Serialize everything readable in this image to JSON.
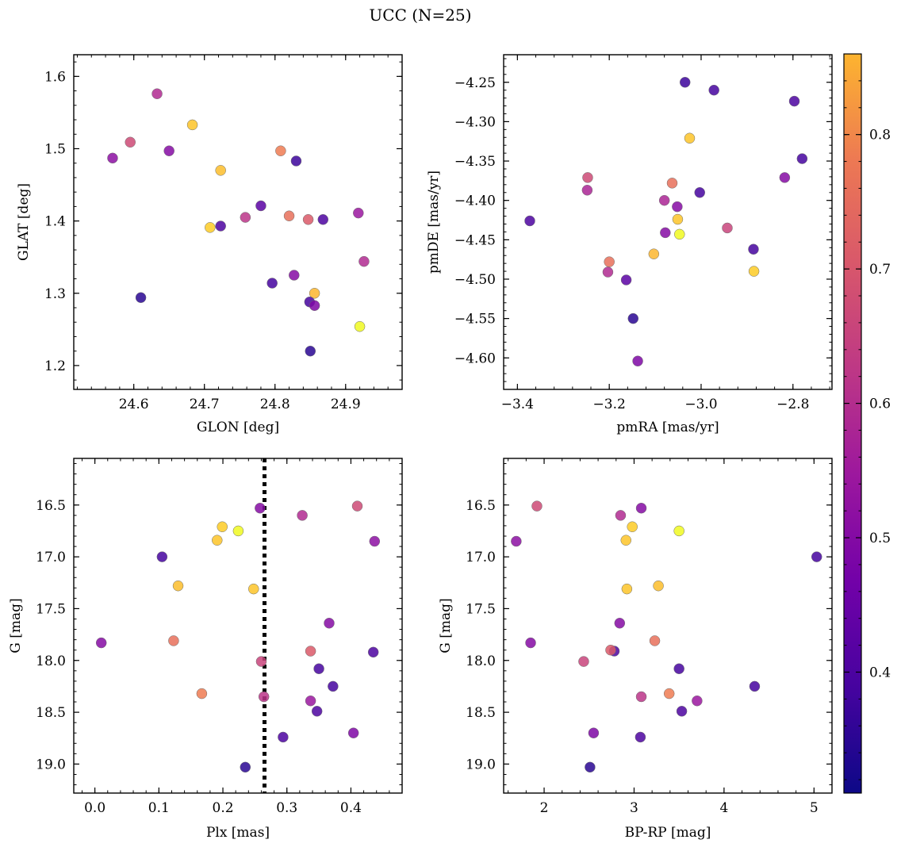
{
  "chart_data": {
    "title": "UCC (N=25)",
    "colorbar": {
      "colormap": "plasma",
      "range": [
        0.31,
        0.86
      ],
      "ticks": [
        0.4,
        0.5,
        0.6,
        0.7,
        0.8
      ],
      "tick_labels": [
        "0.4",
        "0.5",
        "0.6",
        "0.7",
        "0.8"
      ]
    },
    "panels": [
      {
        "type": "scatter",
        "xlabel": "GLON [deg]",
        "ylabel": "GLAT [deg]",
        "xlim": [
          24.515,
          24.98
        ],
        "ylim": [
          1.167,
          1.63
        ],
        "y_inverted": false,
        "xticks": [
          24.6,
          24.7,
          24.8,
          24.9
        ],
        "xtick_labels": [
          "24.6",
          "24.7",
          "24.8",
          "24.9"
        ],
        "yticks": [
          1.2,
          1.3,
          1.4,
          1.5,
          1.6
        ],
        "ytick_labels": [
          "1.2",
          "1.3",
          "1.4",
          "1.5",
          "1.6"
        ],
        "points": [
          {
            "x": 24.633,
            "y": 1.576,
            "c": 0.53
          },
          {
            "x": 24.683,
            "y": 1.533,
            "c": 0.79
          },
          {
            "x": 24.595,
            "y": 1.509,
            "c": 0.59
          },
          {
            "x": 24.65,
            "y": 1.497,
            "c": 0.46
          },
          {
            "x": 24.808,
            "y": 1.497,
            "c": 0.68
          },
          {
            "x": 24.57,
            "y": 1.487,
            "c": 0.47
          },
          {
            "x": 24.83,
            "y": 1.483,
            "c": 0.36
          },
          {
            "x": 24.723,
            "y": 1.47,
            "c": 0.78
          },
          {
            "x": 24.78,
            "y": 1.421,
            "c": 0.4
          },
          {
            "x": 24.918,
            "y": 1.411,
            "c": 0.49
          },
          {
            "x": 24.82,
            "y": 1.407,
            "c": 0.66
          },
          {
            "x": 24.758,
            "y": 1.405,
            "c": 0.55
          },
          {
            "x": 24.847,
            "y": 1.402,
            "c": 0.62
          },
          {
            "x": 24.868,
            "y": 1.402,
            "c": 0.38
          },
          {
            "x": 24.723,
            "y": 1.393,
            "c": 0.38
          },
          {
            "x": 24.708,
            "y": 1.391,
            "c": 0.8
          },
          {
            "x": 24.926,
            "y": 1.344,
            "c": 0.53
          },
          {
            "x": 24.827,
            "y": 1.325,
            "c": 0.46
          },
          {
            "x": 24.796,
            "y": 1.314,
            "c": 0.37
          },
          {
            "x": 24.856,
            "y": 1.3,
            "c": 0.77
          },
          {
            "x": 24.61,
            "y": 1.294,
            "c": 0.34
          },
          {
            "x": 24.849,
            "y": 1.288,
            "c": 0.37
          },
          {
            "x": 24.856,
            "y": 1.283,
            "c": 0.45
          },
          {
            "x": 24.92,
            "y": 1.254,
            "c": 0.86
          },
          {
            "x": 24.85,
            "y": 1.22,
            "c": 0.34
          }
        ]
      },
      {
        "type": "scatter",
        "xlabel": "pmRA [mas/yr]",
        "ylabel": "pmDE [mas/yr]",
        "xlim": [
          -3.43,
          -2.715
        ],
        "ylim": [
          -4.64,
          -4.215
        ],
        "y_inverted": false,
        "xticks": [
          -3.4,
          -3.2,
          -3.0,
          -2.8
        ],
        "xtick_labels": [
          "−3.4",
          "−3.2",
          "−3.0",
          "−2.8"
        ],
        "yticks": [
          -4.6,
          -4.55,
          -4.5,
          -4.45,
          -4.4,
          -4.35,
          -4.3,
          -4.25
        ],
        "ytick_labels": [
          "−4.60",
          "−4.55",
          "−4.50",
          "−4.45",
          "−4.40",
          "−4.35",
          "−4.30",
          "−4.25"
        ],
        "points": [
          {
            "x": -3.035,
            "y": -4.25,
            "c": 0.36
          },
          {
            "x": -2.972,
            "y": -4.26,
            "c": 0.37
          },
          {
            "x": -2.797,
            "y": -4.274,
            "c": 0.38
          },
          {
            "x": -2.78,
            "y": -4.347,
            "c": 0.37
          },
          {
            "x": -3.025,
            "y": -4.321,
            "c": 0.79
          },
          {
            "x": -3.247,
            "y": -4.371,
            "c": 0.59
          },
          {
            "x": -2.818,
            "y": -4.371,
            "c": 0.46
          },
          {
            "x": -3.248,
            "y": -4.387,
            "c": 0.52
          },
          {
            "x": -3.063,
            "y": -4.378,
            "c": 0.66
          },
          {
            "x": -3.003,
            "y": -4.39,
            "c": 0.37
          },
          {
            "x": -3.08,
            "y": -4.4,
            "c": 0.52
          },
          {
            "x": -3.052,
            "y": -4.408,
            "c": 0.46
          },
          {
            "x": -3.373,
            "y": -4.426,
            "c": 0.38
          },
          {
            "x": -3.051,
            "y": -4.424,
            "c": 0.79
          },
          {
            "x": -2.943,
            "y": -4.435,
            "c": 0.58
          },
          {
            "x": -3.078,
            "y": -4.441,
            "c": 0.46
          },
          {
            "x": -3.047,
            "y": -4.443,
            "c": 0.86
          },
          {
            "x": -2.886,
            "y": -4.462,
            "c": 0.37
          },
          {
            "x": -3.103,
            "y": -4.468,
            "c": 0.77
          },
          {
            "x": -3.2,
            "y": -4.478,
            "c": 0.66
          },
          {
            "x": -3.203,
            "y": -4.491,
            "c": 0.53
          },
          {
            "x": -2.885,
            "y": -4.49,
            "c": 0.8
          },
          {
            "x": -3.163,
            "y": -4.501,
            "c": 0.4
          },
          {
            "x": -3.148,
            "y": -4.55,
            "c": 0.34
          },
          {
            "x": -3.138,
            "y": -4.604,
            "c": 0.45
          }
        ]
      },
      {
        "type": "scatter",
        "xlabel": "Plx [mas]",
        "ylabel": "G [mag]",
        "xlim": [
          -0.033,
          0.48
        ],
        "ylim": [
          19.28,
          16.05
        ],
        "y_inverted": true,
        "xticks": [
          0.0,
          0.1,
          0.2,
          0.3,
          0.4
        ],
        "xtick_labels": [
          "0.0",
          "0.1",
          "0.2",
          "0.3",
          "0.4"
        ],
        "yticks": [
          16.5,
          17.0,
          17.5,
          18.0,
          18.5,
          19.0
        ],
        "ytick_labels": [
          "16.5",
          "17.0",
          "17.5",
          "18.0",
          "18.5",
          "19.0"
        ],
        "vline": {
          "x": 0.265,
          "style": "dotted"
        },
        "points": [
          {
            "x": 0.41,
            "y": 16.51,
            "c": 0.59
          },
          {
            "x": 0.258,
            "y": 16.53,
            "c": 0.46
          },
          {
            "x": 0.324,
            "y": 16.6,
            "c": 0.53
          },
          {
            "x": 0.199,
            "y": 16.71,
            "c": 0.8
          },
          {
            "x": 0.224,
            "y": 16.75,
            "c": 0.86
          },
          {
            "x": 0.191,
            "y": 16.84,
            "c": 0.79
          },
          {
            "x": 0.437,
            "y": 16.85,
            "c": 0.47
          },
          {
            "x": 0.105,
            "y": 17.0,
            "c": 0.37
          },
          {
            "x": 0.13,
            "y": 17.28,
            "c": 0.78
          },
          {
            "x": 0.248,
            "y": 17.31,
            "c": 0.79
          },
          {
            "x": 0.366,
            "y": 17.64,
            "c": 0.46
          },
          {
            "x": 0.01,
            "y": 17.83,
            "c": 0.46
          },
          {
            "x": 0.123,
            "y": 17.81,
            "c": 0.66
          },
          {
            "x": 0.337,
            "y": 17.91,
            "c": 0.62
          },
          {
            "x": 0.435,
            "y": 17.92,
            "c": 0.38
          },
          {
            "x": 0.26,
            "y": 18.01,
            "c": 0.58
          },
          {
            "x": 0.35,
            "y": 18.08,
            "c": 0.37
          },
          {
            "x": 0.372,
            "y": 18.25,
            "c": 0.37
          },
          {
            "x": 0.167,
            "y": 18.32,
            "c": 0.68
          },
          {
            "x": 0.264,
            "y": 18.35,
            "c": 0.55
          },
          {
            "x": 0.337,
            "y": 18.39,
            "c": 0.49
          },
          {
            "x": 0.347,
            "y": 18.49,
            "c": 0.38
          },
          {
            "x": 0.404,
            "y": 18.7,
            "c": 0.45
          },
          {
            "x": 0.294,
            "y": 18.74,
            "c": 0.38
          },
          {
            "x": 0.235,
            "y": 19.03,
            "c": 0.34
          }
        ]
      },
      {
        "type": "scatter",
        "xlabel": "BP-RP [mag]",
        "ylabel": "G [mag]",
        "xlim": [
          1.55,
          5.2
        ],
        "ylim": [
          19.28,
          16.05
        ],
        "y_inverted": true,
        "xticks": [
          2,
          3,
          4,
          5
        ],
        "xtick_labels": [
          "2",
          "3",
          "4",
          "5"
        ],
        "yticks": [
          16.5,
          17.0,
          17.5,
          18.0,
          18.5,
          19.0
        ],
        "ytick_labels": [
          "16.5",
          "17.0",
          "17.5",
          "18.0",
          "18.5",
          "19.0"
        ],
        "points": [
          {
            "x": 1.92,
            "y": 16.51,
            "c": 0.59
          },
          {
            "x": 3.08,
            "y": 16.53,
            "c": 0.46
          },
          {
            "x": 2.85,
            "y": 16.6,
            "c": 0.53
          },
          {
            "x": 2.98,
            "y": 16.71,
            "c": 0.8
          },
          {
            "x": 3.5,
            "y": 16.75,
            "c": 0.86
          },
          {
            "x": 2.91,
            "y": 16.84,
            "c": 0.79
          },
          {
            "x": 1.69,
            "y": 16.85,
            "c": 0.47
          },
          {
            "x": 5.03,
            "y": 17.0,
            "c": 0.37
          },
          {
            "x": 3.27,
            "y": 17.28,
            "c": 0.78
          },
          {
            "x": 2.92,
            "y": 17.31,
            "c": 0.79
          },
          {
            "x": 2.84,
            "y": 17.64,
            "c": 0.46
          },
          {
            "x": 1.85,
            "y": 17.83,
            "c": 0.46
          },
          {
            "x": 3.23,
            "y": 17.81,
            "c": 0.66
          },
          {
            "x": 2.78,
            "y": 17.91,
            "c": 0.38
          },
          {
            "x": 2.74,
            "y": 17.9,
            "c": 0.62
          },
          {
            "x": 2.44,
            "y": 18.01,
            "c": 0.58
          },
          {
            "x": 3.5,
            "y": 18.08,
            "c": 0.37
          },
          {
            "x": 4.34,
            "y": 18.25,
            "c": 0.37
          },
          {
            "x": 3.39,
            "y": 18.32,
            "c": 0.68
          },
          {
            "x": 3.08,
            "y": 18.35,
            "c": 0.55
          },
          {
            "x": 3.7,
            "y": 18.39,
            "c": 0.49
          },
          {
            "x": 3.53,
            "y": 18.49,
            "c": 0.38
          },
          {
            "x": 2.55,
            "y": 18.7,
            "c": 0.45
          },
          {
            "x": 3.07,
            "y": 18.74,
            "c": 0.38
          },
          {
            "x": 2.51,
            "y": 19.03,
            "c": 0.34
          }
        ]
      }
    ]
  }
}
